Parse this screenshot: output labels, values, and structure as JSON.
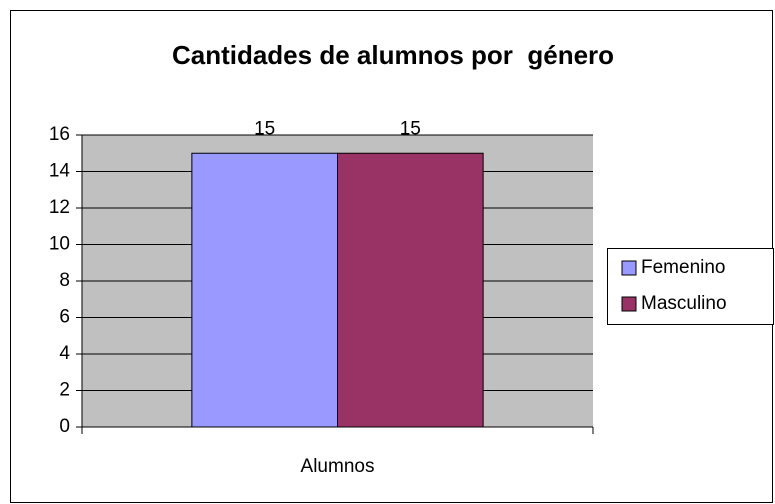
{
  "chart_data": {
    "type": "bar",
    "title": "Cantidades de alumnos por  género",
    "categories": [
      "Alumnos"
    ],
    "series": [
      {
        "name": "Femenino",
        "color": "#9999ff",
        "values": [
          15
        ]
      },
      {
        "name": "Masculino",
        "color": "#993366",
        "values": [
          15
        ]
      }
    ],
    "ylim": [
      0,
      16
    ],
    "yticks": [
      0,
      2,
      4,
      6,
      8,
      10,
      12,
      14,
      16
    ],
    "grid": true,
    "legend": "right",
    "plot_background": "#c0c0c0"
  }
}
